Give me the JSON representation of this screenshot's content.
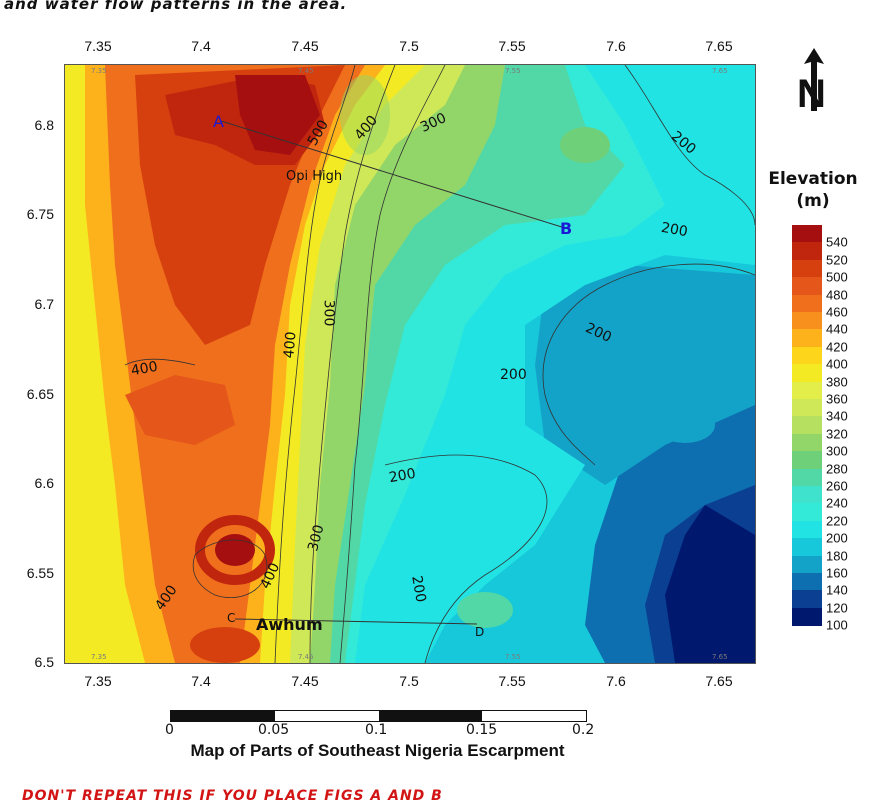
{
  "top_text": "and water flow patterns in the area.",
  "bottom_text": "DON'T REPEAT THIS IF YOU PLACE FIGS A AND B",
  "map": {
    "x_ticks": [
      "7.35",
      "7.4",
      "7.45",
      "7.5",
      "7.55",
      "7.6",
      "7.65"
    ],
    "y_ticks": [
      "6.8",
      "6.75",
      "6.7",
      "6.65",
      "6.6",
      "6.55",
      "6.5"
    ],
    "inner_x_ticks": [
      "7.35",
      "7.45",
      "7.55",
      "7.65"
    ],
    "points": [
      {
        "label": "A",
        "color": "#1a1ad6"
      },
      {
        "label": "B",
        "color": "#1a1ad6"
      },
      {
        "label": "C",
        "color": "#111111"
      },
      {
        "label": "D",
        "color": "#111111"
      }
    ],
    "place_labels": {
      "opi": "Opi High",
      "awhum": "Awhum"
    },
    "contour_labels": [
      {
        "id": "c500",
        "text": "500"
      },
      {
        "id": "c400a",
        "text": "400"
      },
      {
        "id": "c300a",
        "text": "300"
      },
      {
        "id": "c200a",
        "text": "200"
      },
      {
        "id": "c200b",
        "text": "200"
      },
      {
        "id": "c300b",
        "text": "300"
      },
      {
        "id": "c400b",
        "text": "400"
      },
      {
        "id": "c200c",
        "text": "200"
      },
      {
        "id": "c400c",
        "text": "400"
      },
      {
        "id": "c200d",
        "text": "200"
      },
      {
        "id": "c200e",
        "text": "200"
      },
      {
        "id": "c300c",
        "text": "300"
      },
      {
        "id": "c400d",
        "text": "400"
      },
      {
        "id": "c200f",
        "text": "200"
      },
      {
        "id": "c400e",
        "text": "400"
      }
    ]
  },
  "north_arrow": {
    "letter": "N"
  },
  "legend": {
    "title": "Elevation (m)",
    "levels": [
      "540",
      "520",
      "500",
      "480",
      "460",
      "440",
      "420",
      "400",
      "380",
      "360",
      "340",
      "320",
      "300",
      "280",
      "260",
      "240",
      "220",
      "200",
      "180",
      "160",
      "140",
      "120",
      "100"
    ],
    "colors": [
      "#a50f0f",
      "#c0260e",
      "#d6400e",
      "#e5561a",
      "#f06f1c",
      "#f7901c",
      "#fdb21c",
      "#fdd51a",
      "#f4ea23",
      "#e4ee4a",
      "#cfe857",
      "#b6e05f",
      "#92d66a",
      "#6fd07a",
      "#52d8a6",
      "#3fe3cd",
      "#33ead9",
      "#21e3e3",
      "#17c8da",
      "#14a3c8",
      "#0e6fb0",
      "#0a3f92",
      "#00186e"
    ]
  },
  "scale_bar": {
    "labels": [
      "0",
      "0.05",
      "0.1",
      "0.15",
      "0.2"
    ],
    "caption": "Map of Parts of Southeast Nigeria Escarpment"
  }
}
